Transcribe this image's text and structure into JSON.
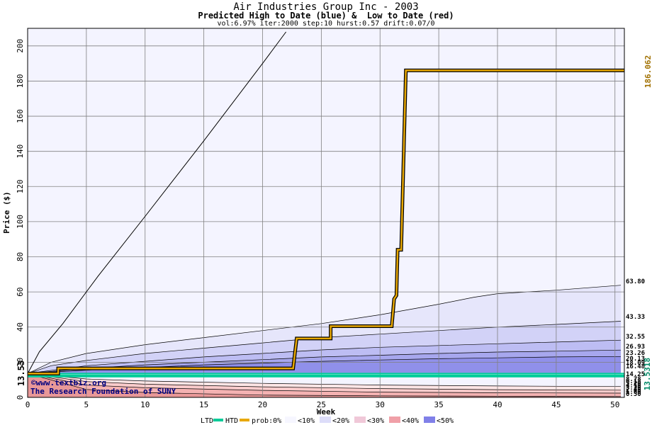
{
  "header": {
    "title": "Air Industries Group Inc - 2003",
    "subtitle": "Predicted High to Date (blue) &  Low to Date (red)",
    "params": "vol:6.97% iter:2000 step:10 hurst:0.57 drift:0.07/0"
  },
  "colors": {
    "plot_bg": "#f4f4ff",
    "grid": "#808080",
    "price_line": "#e8a800",
    "htd": "#00cc99",
    "band_high": [
      "#e6e6fb",
      "#d2d2f7",
      "#bdbdf3",
      "#a7a7ee",
      "#9090ea",
      "#7b7be6"
    ],
    "band_low": [
      "#ffe6e6",
      "#fbcccc",
      "#f4b2b2",
      "#e89898"
    ],
    "right_label_gold": "#a07000",
    "right_label_green": "#008866",
    "credit": "#000080"
  },
  "credits": {
    "site": "©www.textbiz.org",
    "org": "The Research Foundation of SUNY"
  },
  "legend": {
    "ltd": "LTD",
    "htd": "HTD",
    "prob": "prob:0%",
    "items": [
      "<10%",
      "<20%",
      "<30%",
      "<40%",
      "<50%"
    ]
  },
  "chart_data": {
    "type": "area",
    "title": "Air Industries Group Inc - 2003",
    "subtitle": "Predicted High to Date (blue) &  Low to Date (red)",
    "xlabel": "Week",
    "ylabel": "Price ($)",
    "xlim": [
      0,
      50.8
    ],
    "ylim": [
      0,
      210
    ],
    "x_ticks": [
      0,
      5,
      10,
      15,
      20,
      25,
      30,
      35,
      40,
      45,
      50
    ],
    "y_ticks": [
      0,
      20,
      40,
      60,
      80,
      100,
      120,
      140,
      160,
      180,
      200
    ],
    "grid": true,
    "start_price": 13.53,
    "start_label": "13.53",
    "right_labels": [
      {
        "text": "186.062",
        "value": 186.062,
        "role": "price"
      },
      {
        "text": "13.5318",
        "value": 13.5318,
        "role": "htd"
      }
    ],
    "band_end_labels": [
      "63.80",
      "43.33",
      "32.55",
      "26.93",
      "23.26",
      "20.13",
      "18.09",
      "16.48",
      "14.25",
      "8.78",
      "6.18",
      "5.20",
      "4.10",
      "3.20",
      "2.40",
      "1.60",
      "0.50"
    ],
    "max_envelope": [
      [
        0,
        13.53
      ],
      [
        1,
        26
      ],
      [
        3,
        42
      ],
      [
        6,
        69
      ],
      [
        10,
        103
      ],
      [
        15,
        146
      ],
      [
        20,
        190
      ],
      [
        22,
        208
      ]
    ],
    "high_bands": [
      {
        "name": "<10%",
        "points": [
          [
            0,
            13.53
          ],
          [
            2,
            20
          ],
          [
            5,
            25
          ],
          [
            10,
            30
          ],
          [
            15,
            34
          ],
          [
            20,
            38
          ],
          [
            25,
            42
          ],
          [
            30,
            47
          ],
          [
            35,
            53
          ],
          [
            38,
            57
          ],
          [
            40,
            59
          ],
          [
            45,
            61
          ],
          [
            50.5,
            63.8
          ]
        ]
      },
      {
        "name": "<20%",
        "points": [
          [
            0,
            13.53
          ],
          [
            2,
            18
          ],
          [
            5,
            21
          ],
          [
            10,
            25
          ],
          [
            15,
            28
          ],
          [
            20,
            31
          ],
          [
            25,
            34
          ],
          [
            30,
            36
          ],
          [
            35,
            38
          ],
          [
            40,
            40
          ],
          [
            45,
            41.5
          ],
          [
            50.5,
            43.33
          ]
        ]
      },
      {
        "name": "<30%",
        "points": [
          [
            0,
            13.53
          ],
          [
            5,
            18
          ],
          [
            10,
            20.5
          ],
          [
            15,
            23
          ],
          [
            20,
            25
          ],
          [
            25,
            27
          ],
          [
            30,
            28.5
          ],
          [
            35,
            29.5
          ],
          [
            40,
            30.5
          ],
          [
            45,
            31.5
          ],
          [
            50.5,
            32.55
          ]
        ]
      },
      {
        "name": "<40%",
        "points": [
          [
            0,
            13.53
          ],
          [
            5,
            16.5
          ],
          [
            10,
            18.5
          ],
          [
            15,
            20
          ],
          [
            20,
            21.5
          ],
          [
            25,
            23
          ],
          [
            30,
            24
          ],
          [
            35,
            25
          ],
          [
            40,
            25.8
          ],
          [
            45,
            26.3
          ],
          [
            50.5,
            26.93
          ]
        ]
      },
      {
        "name": "<50%",
        "points": [
          [
            0,
            13.53
          ],
          [
            5,
            15.5
          ],
          [
            10,
            17
          ],
          [
            15,
            18.5
          ],
          [
            20,
            19.5
          ],
          [
            25,
            20.5
          ],
          [
            30,
            21.3
          ],
          [
            35,
            22
          ],
          [
            40,
            22.5
          ],
          [
            45,
            23
          ],
          [
            50.5,
            23.26
          ]
        ]
      }
    ],
    "low_bands": [
      {
        "name": "<10%",
        "points": [
          [
            0,
            13.53
          ],
          [
            5,
            4.5
          ],
          [
            10,
            2.8
          ],
          [
            20,
            1.3
          ],
          [
            30,
            0.9
          ],
          [
            40,
            0.7
          ],
          [
            50.5,
            0.5
          ]
        ]
      },
      {
        "name": "<20%",
        "points": [
          [
            0,
            13.53
          ],
          [
            5,
            7
          ],
          [
            10,
            5.5
          ],
          [
            20,
            4
          ],
          [
            30,
            3
          ],
          [
            40,
            2.6
          ],
          [
            50.5,
            2.4
          ]
        ]
      },
      {
        "name": "<30%",
        "points": [
          [
            0,
            13.53
          ],
          [
            5,
            9
          ],
          [
            10,
            7.5
          ],
          [
            20,
            6
          ],
          [
            30,
            5
          ],
          [
            40,
            4.4
          ],
          [
            50.5,
            4.1
          ]
        ]
      },
      {
        "name": "<40%",
        "points": [
          [
            0,
            13.53
          ],
          [
            5,
            10.5
          ],
          [
            10,
            9.3
          ],
          [
            20,
            8
          ],
          [
            30,
            7
          ],
          [
            40,
            6.5
          ],
          [
            50.5,
            6.18
          ]
        ]
      }
    ],
    "series": [
      {
        "name": "price",
        "points": [
          [
            0,
            13.53
          ],
          [
            2.6,
            13.53
          ],
          [
            2.6,
            16.5
          ],
          [
            22.6,
            16.5
          ],
          [
            22.9,
            33.5
          ],
          [
            25.8,
            33.5
          ],
          [
            25.8,
            40.5
          ],
          [
            31,
            40.5
          ],
          [
            31.2,
            56
          ],
          [
            31.4,
            58
          ],
          [
            31.5,
            84
          ],
          [
            31.8,
            84
          ],
          [
            32.2,
            186.06
          ],
          [
            50.8,
            186.06
          ]
        ]
      },
      {
        "name": "HTD",
        "points": [
          [
            0,
            13.53
          ],
          [
            50.8,
            13.53
          ]
        ]
      },
      {
        "name": "LTD",
        "points": [
          [
            0,
            12.2
          ],
          [
            50.8,
            12.2
          ]
        ]
      }
    ]
  }
}
